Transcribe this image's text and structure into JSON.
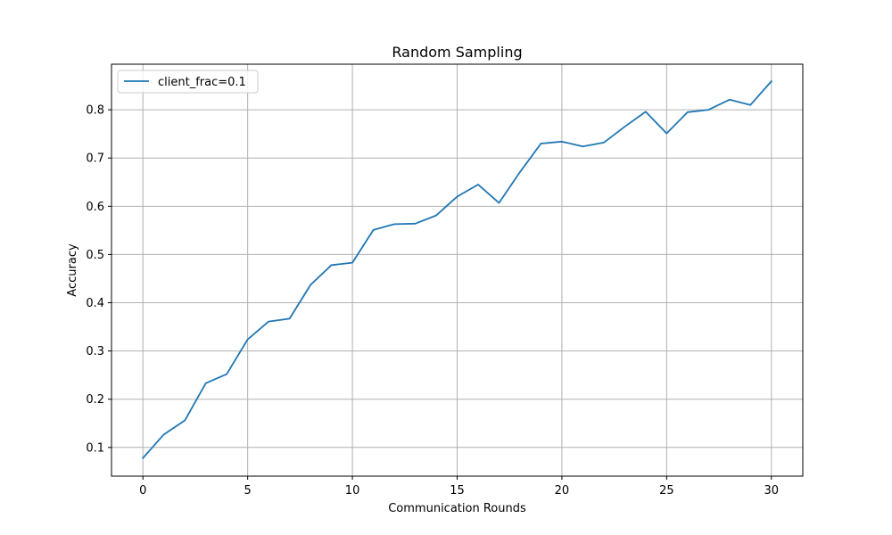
{
  "chart_data": {
    "type": "line",
    "title": "Random Sampling",
    "xlabel": "Communication Rounds",
    "ylabel": "Accuracy",
    "xlim": [
      -1.5,
      31.5
    ],
    "ylim": [
      0.0405,
      0.8945
    ],
    "xticks": [
      0,
      5,
      10,
      15,
      20,
      25,
      30
    ],
    "yticks": [
      0.1,
      0.2,
      0.3,
      0.4,
      0.5,
      0.6,
      0.7,
      0.8
    ],
    "grid": true,
    "legend_position": "upper-left",
    "x": [
      0,
      1,
      2,
      3,
      4,
      5,
      6,
      7,
      8,
      9,
      10,
      11,
      12,
      13,
      14,
      15,
      16,
      17,
      18,
      19,
      20,
      21,
      22,
      23,
      24,
      25,
      26,
      27,
      28,
      29,
      30
    ],
    "series": [
      {
        "name": "client_frac=0.1",
        "color": "#1f77b4",
        "values": [
          0.078,
          0.127,
          0.156,
          0.233,
          0.252,
          0.324,
          0.361,
          0.367,
          0.437,
          0.478,
          0.483,
          0.551,
          0.563,
          0.564,
          0.581,
          0.62,
          0.645,
          0.607,
          0.671,
          0.73,
          0.734,
          0.724,
          0.732,
          0.765,
          0.796,
          0.751,
          0.795,
          0.8,
          0.821,
          0.81,
          0.859
        ]
      }
    ]
  }
}
